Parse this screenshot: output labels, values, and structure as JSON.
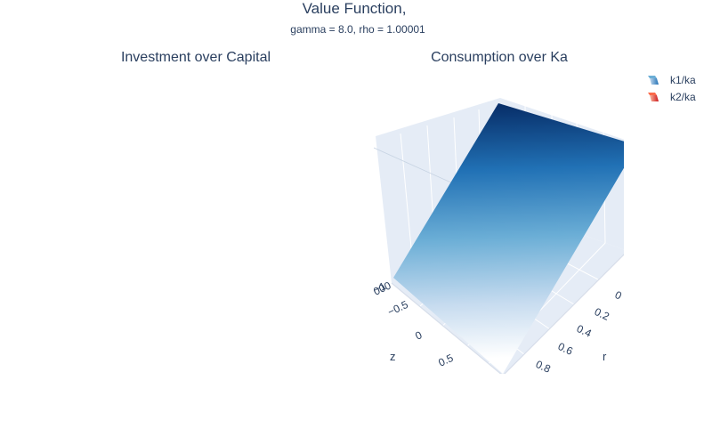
{
  "figure": {
    "title": "Value Function,",
    "subtitle": "gamma = 8.0, rho = 1.00001"
  },
  "chart_data": [
    {
      "type": "surface",
      "subplot_title": "Investment over Capital",
      "series": []
    },
    {
      "type": "surface",
      "subplot_title": "Consumption over Ka",
      "axes": {
        "z_label": "z",
        "r_label": "r",
        "z_ticks": [
          "−1",
          "−0.5",
          "0",
          "0.5"
        ],
        "r_ticks": [
          "0",
          "0.2",
          "0.4",
          "0.6",
          "0.8"
        ],
        "value_ticks": [
          "000"
        ]
      },
      "series": [
        {
          "name": "k1/ka",
          "colorscale": [
            "#f7fbff",
            "#c6dbef",
            "#6baed6",
            "#2171b5",
            "#08306b"
          ]
        },
        {
          "name": "k2/ka",
          "colorscale": [
            "#fff5f0",
            "#fcbba1",
            "#fb6a4a",
            "#cb181d",
            "#67000d"
          ]
        }
      ]
    }
  ]
}
